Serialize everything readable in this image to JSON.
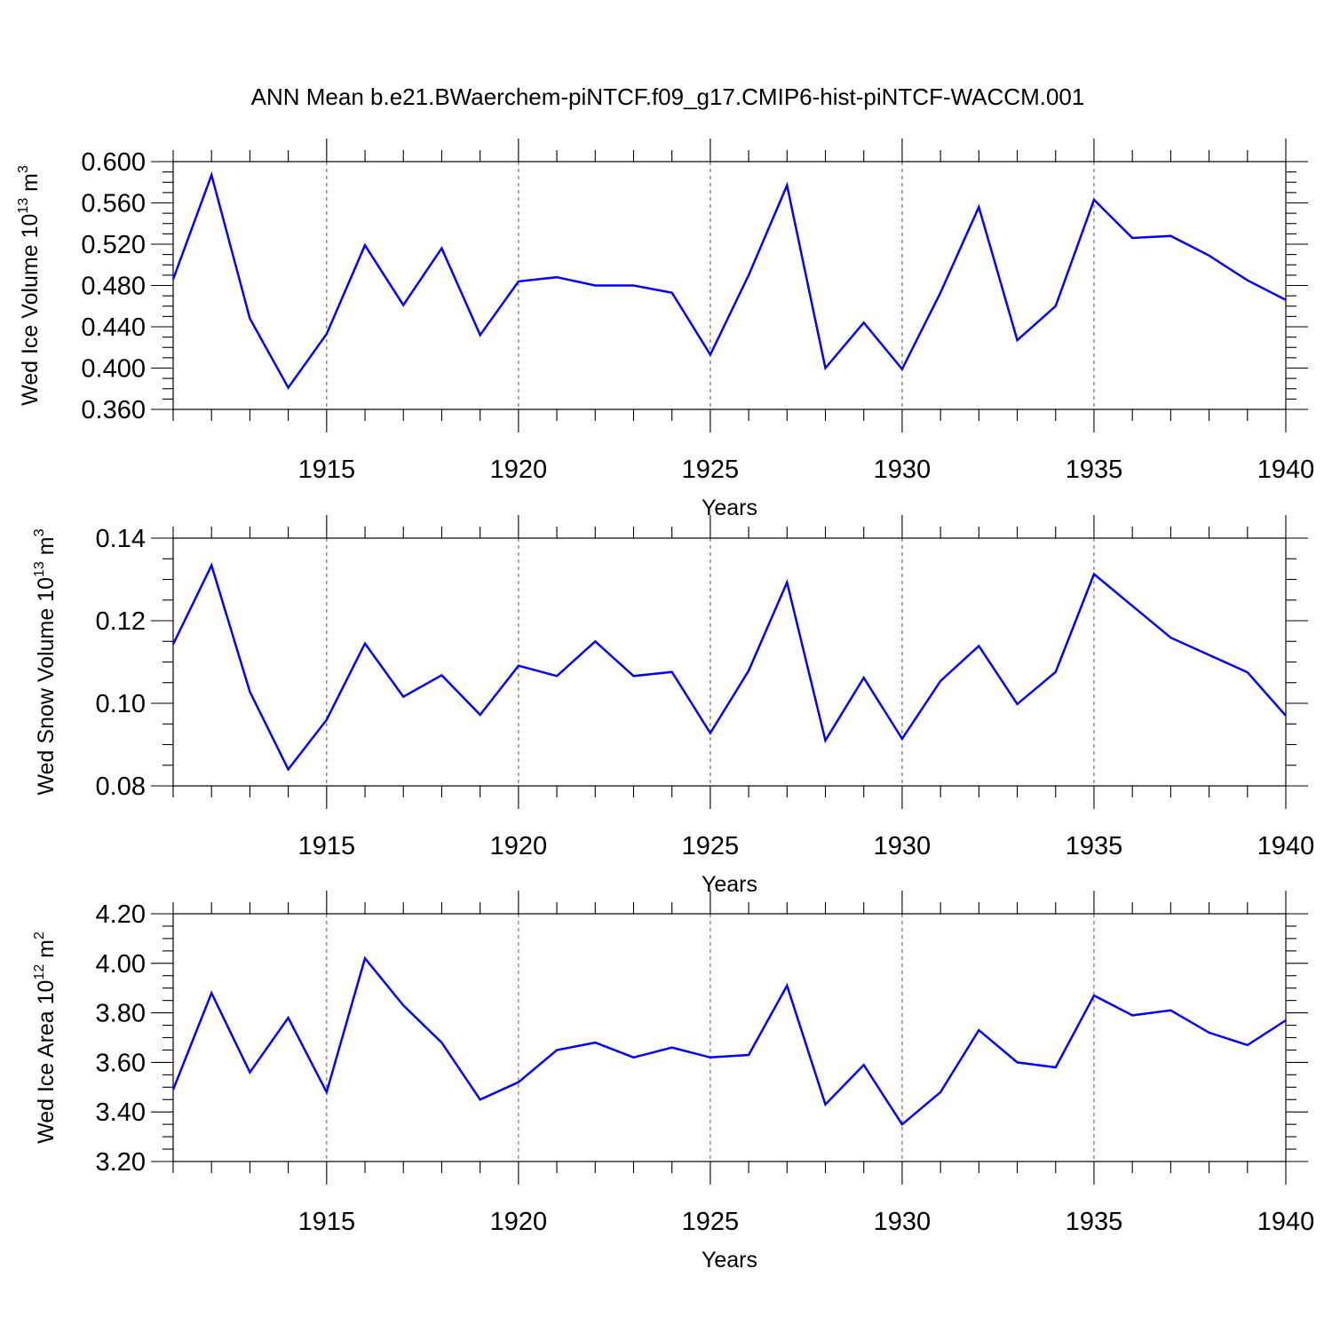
{
  "title": "ANN Mean b.e21.BWaerchem-piNTCF.f09_g17.CMIP6-hist-piNTCF-WACCM.001",
  "line_color": "#0000ff",
  "chart_data": [
    {
      "type": "line",
      "ylabel_parts": [
        "Wed Ice Volume 10",
        "13",
        " m",
        "3"
      ],
      "xlabel": "Years",
      "xlim": [
        1911,
        1940
      ],
      "ylim": [
        0.36,
        0.6
      ],
      "x_ticks": [
        "1915",
        "1920",
        "1925",
        "1930",
        "1935",
        "1940"
      ],
      "y_ticks": [
        "0.360",
        "0.400",
        "0.440",
        "0.480",
        "0.520",
        "0.560",
        "0.600"
      ],
      "grid_x": [
        1915,
        1920,
        1925,
        1930,
        1935
      ],
      "x": [
        1911,
        1912,
        1913,
        1914,
        1915,
        1916,
        1917,
        1918,
        1919,
        1920,
        1921,
        1922,
        1923,
        1924,
        1925,
        1926,
        1927,
        1928,
        1929,
        1930,
        1931,
        1932,
        1933,
        1934,
        1935,
        1936,
        1937,
        1938,
        1939,
        1940
      ],
      "values": [
        0.486,
        0.587,
        0.448,
        0.381,
        0.433,
        0.519,
        0.461,
        0.516,
        0.432,
        0.484,
        0.488,
        0.48,
        0.48,
        0.473,
        0.413,
        0.49,
        0.577,
        0.4,
        0.444,
        0.399,
        0.473,
        0.556,
        0.427,
        0.46,
        0.563,
        0.526,
        0.528,
        0.509,
        0.485,
        0.466
      ]
    },
    {
      "type": "line",
      "ylabel_parts": [
        "Wed Snow Volume 10",
        "13",
        " m",
        "3"
      ],
      "xlabel": "Years",
      "xlim": [
        1911,
        1940
      ],
      "ylim": [
        0.08,
        0.14
      ],
      "x_ticks": [
        "1915",
        "1920",
        "1925",
        "1930",
        "1935",
        "1940"
      ],
      "y_ticks": [
        "0.08",
        "0.10",
        "0.12",
        "0.14"
      ],
      "grid_x": [
        1915,
        1920,
        1925,
        1930,
        1935
      ],
      "x": [
        1911,
        1912,
        1913,
        1914,
        1915,
        1916,
        1917,
        1918,
        1919,
        1920,
        1921,
        1922,
        1923,
        1924,
        1925,
        1926,
        1927,
        1928,
        1929,
        1930,
        1931,
        1932,
        1933,
        1934,
        1935,
        1936,
        1937,
        1938,
        1939,
        1940
      ],
      "values": [
        0.1143,
        0.1334,
        0.1028,
        0.084,
        0.096,
        0.1145,
        0.1016,
        0.1068,
        0.0972,
        0.1091,
        0.1066,
        0.115,
        0.1066,
        0.1076,
        0.0928,
        0.1079,
        0.1293,
        0.091,
        0.1062,
        0.0914,
        0.1054,
        0.1139,
        0.0998,
        0.1076,
        0.1313,
        0.1236,
        0.1159,
        0.1117,
        0.1075,
        0.097
      ]
    },
    {
      "type": "line",
      "ylabel_parts": [
        "Wed Ice Area 10",
        "12",
        " m",
        "2"
      ],
      "xlabel": "Years",
      "xlim": [
        1911,
        1940
      ],
      "ylim": [
        3.2,
        4.2
      ],
      "x_ticks": [
        "1915",
        "1920",
        "1925",
        "1930",
        "1935",
        "1940"
      ],
      "y_ticks": [
        "3.20",
        "3.40",
        "3.60",
        "3.80",
        "4.00",
        "4.20"
      ],
      "grid_x": [
        1915,
        1920,
        1925,
        1930,
        1935
      ],
      "x": [
        1911,
        1912,
        1913,
        1914,
        1915,
        1916,
        1917,
        1918,
        1919,
        1920,
        1921,
        1922,
        1923,
        1924,
        1925,
        1926,
        1927,
        1928,
        1929,
        1930,
        1931,
        1932,
        1933,
        1934,
        1935,
        1936,
        1937,
        1938,
        1939,
        1940
      ],
      "values": [
        3.49,
        3.88,
        3.56,
        3.78,
        3.48,
        4.02,
        3.83,
        3.68,
        3.45,
        3.52,
        3.65,
        3.68,
        3.62,
        3.66,
        3.62,
        3.63,
        3.91,
        3.43,
        3.59,
        3.35,
        3.48,
        3.73,
        3.6,
        3.58,
        3.87,
        3.79,
        3.81,
        3.72,
        3.67,
        3.77
      ]
    }
  ]
}
